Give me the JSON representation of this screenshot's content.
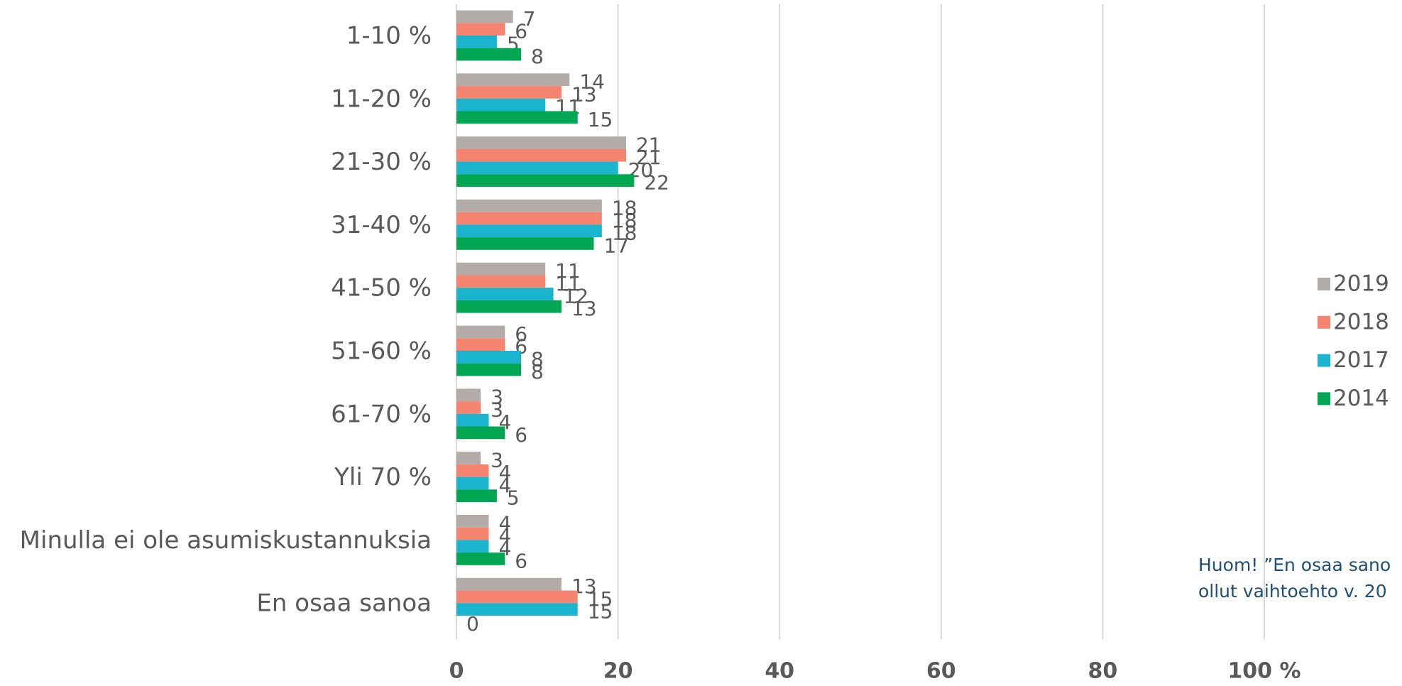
{
  "chart_data": {
    "type": "bar",
    "orientation": "horizontal",
    "categories": [
      "1-10 %",
      "11-20 %",
      "21-30 %",
      "31-40 %",
      "41-50 %",
      "51-60 %",
      "61-70 %",
      "Yli 70 %",
      "Minulla ei ole asumiskustannuksia",
      "En osaa sanoa"
    ],
    "series": [
      {
        "name": "2019",
        "color": "#b3aba8",
        "values": [
          7,
          14,
          21,
          18,
          11,
          6,
          3,
          3,
          4,
          13
        ]
      },
      {
        "name": "2018",
        "color": "#f4846f",
        "values": [
          6,
          13,
          21,
          18,
          11,
          6,
          3,
          4,
          4,
          15
        ]
      },
      {
        "name": "2017",
        "color": "#1ab4cf",
        "values": [
          5,
          11,
          20,
          18,
          12,
          8,
          4,
          4,
          4,
          15
        ]
      },
      {
        "name": "2014",
        "color": "#00a651",
        "values": [
          8,
          15,
          22,
          17,
          13,
          8,
          6,
          5,
          6,
          0
        ]
      }
    ],
    "xlim": [
      0,
      100
    ],
    "xticks": [
      0,
      20,
      40,
      60,
      80,
      {
        "value": 100,
        "label": "100 %"
      }
    ],
    "grid": true,
    "legend": "right",
    "annotations": [
      "Huom! ”En osaa sano",
      "ollut vaihtoehto v. 20"
    ]
  }
}
